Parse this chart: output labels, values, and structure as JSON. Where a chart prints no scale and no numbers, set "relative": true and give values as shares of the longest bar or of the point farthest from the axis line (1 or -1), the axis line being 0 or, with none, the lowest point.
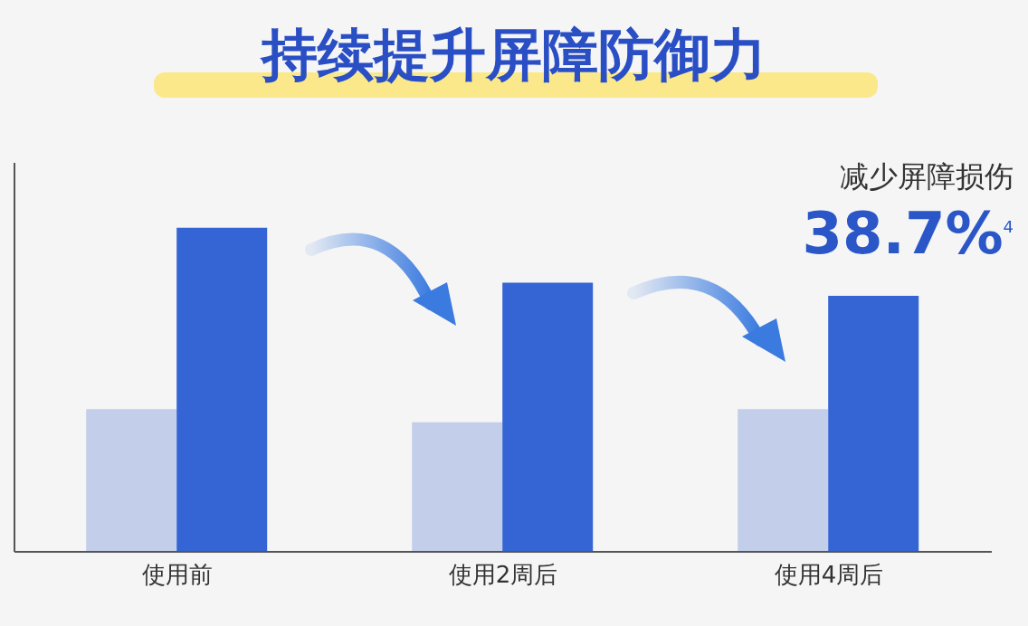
{
  "chart_data": {
    "type": "bar",
    "title": "持续提升屏障防御力",
    "categories": [
      "使用前",
      "使用2周后",
      "使用4周后"
    ],
    "relative": true,
    "series": [
      {
        "color": "#c3cfea",
        "values": [
          0.44,
          0.4,
          0.44
        ]
      },
      {
        "color": "#3565d4",
        "values": [
          1,
          0.83,
          0.79
        ]
      }
    ],
    "annotations": [
      "减少屏障损伤",
      "38.7%$^{4}$"
    ],
    "grid": false,
    "legend": false
  }
}
